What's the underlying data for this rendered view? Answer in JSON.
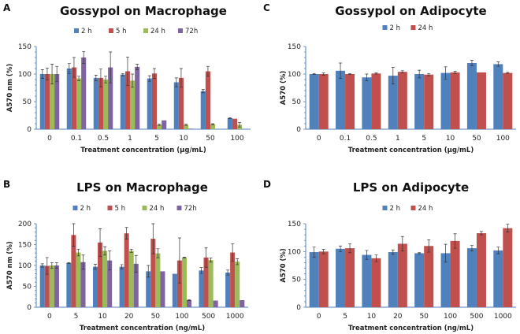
{
  "chart_data": [
    {
      "panel": "A",
      "type": "bar",
      "title": "Gossypol on Macrophage",
      "xlabel": "Treatment concentration (μg/mL)",
      "ylabel": "A570 nm (%)",
      "ylim": [
        0,
        150
      ],
      "yticks": [
        0,
        50,
        100,
        150
      ],
      "legend": "top",
      "categories": [
        "0",
        "0.1",
        "0.5",
        "1",
        "5",
        "10",
        "50",
        "100"
      ],
      "series": [
        {
          "name": "2 h",
          "color": "#4F81BD",
          "values": [
            100,
            110,
            93,
            99,
            92,
            85,
            69,
            20
          ],
          "errors": [
            8,
            9,
            5,
            2,
            5,
            8,
            3,
            1
          ]
        },
        {
          "name": "5 h",
          "color": "#C0504D",
          "values": [
            100,
            112,
            93,
            105,
            101,
            93,
            105,
            19
          ],
          "errors": [
            11,
            18,
            16,
            26,
            9,
            17,
            9,
            0
          ]
        },
        {
          "name": "24 h",
          "color": "#9BBB59",
          "values": [
            100,
            92,
            90,
            88,
            8,
            8,
            9,
            8
          ],
          "errors": [
            18,
            4,
            6,
            12,
            1,
            1,
            1,
            4
          ]
        },
        {
          "name": "72h",
          "color": "#8064A2",
          "values": [
            100,
            130,
            112,
            113,
            16,
            1,
            0,
            0
          ],
          "errors": [
            14,
            11,
            28,
            5,
            0,
            0,
            0,
            0
          ]
        }
      ]
    },
    {
      "panel": "B",
      "type": "bar",
      "title": "LPS on Macrophage",
      "xlabel": "Treatment concentration (ng/mL)",
      "ylabel": "A570 nm (%)",
      "ylim": [
        0,
        200
      ],
      "yticks": [
        0,
        50,
        100,
        150,
        200
      ],
      "legend": "top",
      "categories": [
        "0",
        "5",
        "10",
        "20",
        "50",
        "100",
        "500",
        "1000"
      ],
      "series": [
        {
          "name": "2 h",
          "color": "#4F81BD",
          "values": [
            100,
            106,
            97,
            97,
            86,
            80,
            88,
            83
          ],
          "errors": [
            4,
            1,
            6,
            5,
            14,
            0,
            7,
            6
          ]
        },
        {
          "name": "5 h",
          "color": "#C0504D",
          "values": [
            99,
            173,
            155,
            177,
            164,
            112,
            119,
            131
          ],
          "errors": [
            20,
            27,
            33,
            14,
            36,
            54,
            23,
            21
          ]
        },
        {
          "name": "24 h",
          "color": "#9BBB59",
          "values": [
            100,
            131,
            135,
            135,
            129,
            119,
            113,
            109
          ],
          "errors": [
            7,
            8,
            10,
            4,
            11,
            1,
            5,
            7
          ]
        },
        {
          "name": "72h",
          "color": "#8064A2",
          "values": [
            100,
            108,
            112,
            104,
            86,
            17,
            16,
            17
          ],
          "errors": [
            7,
            17,
            23,
            20,
            0,
            1,
            0,
            0
          ]
        }
      ]
    },
    {
      "panel": "C",
      "type": "bar",
      "title": "Gossypol on Adipocyte",
      "xlabel": "Treatment concentration (μg/mL)",
      "ylabel": "A570 (%)",
      "ylim": [
        0,
        150
      ],
      "yticks": [
        0,
        50,
        100,
        150
      ],
      "legend": "top",
      "categories": [
        "0",
        "0.1",
        "0.5",
        "1",
        "5",
        "10",
        "50",
        "100"
      ],
      "series": [
        {
          "name": "2 h",
          "color": "#4F81BD",
          "values": [
            100,
            106,
            94,
            97,
            100,
            102,
            120,
            118
          ],
          "errors": [
            1,
            14,
            6,
            15,
            7,
            11,
            5,
            4
          ]
        },
        {
          "name": "24 h",
          "color": "#C0504D",
          "values": [
            100,
            100,
            101,
            104,
            99,
            103,
            103,
            102
          ],
          "errors": [
            2,
            1,
            1,
            2,
            2,
            2,
            0,
            1
          ]
        }
      ]
    },
    {
      "panel": "D",
      "type": "bar",
      "title": "LPS on Adipocyte",
      "xlabel": "Treatment concentration (ng/mL)",
      "ylabel": "A570 (%)",
      "ylim": [
        0,
        150
      ],
      "yticks": [
        0,
        50,
        100,
        150
      ],
      "legend": "top",
      "categories": [
        "0",
        "5",
        "10",
        "20",
        "50",
        "100",
        "500",
        "1000"
      ],
      "series": [
        {
          "name": "2 h",
          "color": "#4F81BD",
          "values": [
            99,
            105,
            94,
            99,
            97,
            97,
            106,
            102
          ],
          "errors": [
            9,
            5,
            8,
            4,
            1,
            16,
            5,
            6
          ]
        },
        {
          "name": "24 h",
          "color": "#C0504D",
          "values": [
            100,
            106,
            88,
            114,
            110,
            119,
            133,
            142
          ],
          "errors": [
            4,
            8,
            6,
            13,
            11,
            13,
            3,
            7
          ]
        }
      ]
    }
  ]
}
